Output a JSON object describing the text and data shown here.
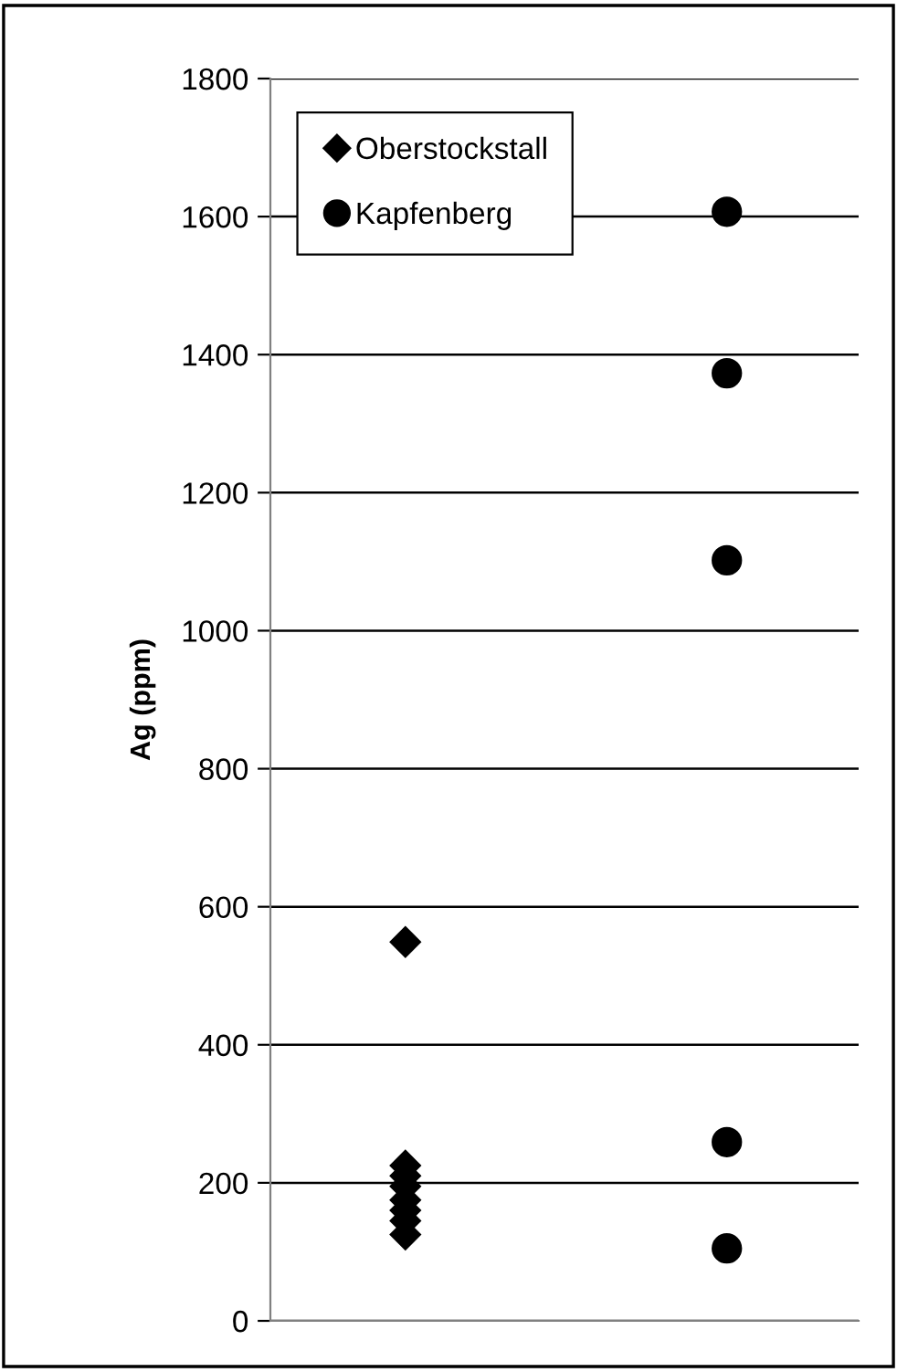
{
  "chart_data": {
    "type": "scatter",
    "ylabel": "Ag (ppm)",
    "categories": [
      null,
      null
    ],
    "series": [
      {
        "name": "Oberstockstall",
        "color": "#000000",
        "marker": "diamond",
        "values": [
          549,
          null
        ]
      },
      {
        "color": "#000000",
        "marker": "diamond",
        "values": [
          225,
          null
        ]
      },
      {
        "color": "#000000",
        "marker": "diamond",
        "values": [
          210,
          null
        ]
      },
      {
        "color": "#000000",
        "marker": "diamond",
        "values": [
          195,
          null
        ]
      },
      {
        "color": "#000000",
        "marker": "diamond",
        "values": [
          175,
          null
        ]
      },
      {
        "color": "#000000",
        "marker": "diamond",
        "values": [
          160,
          null
        ]
      },
      {
        "color": "#000000",
        "marker": "diamond",
        "values": [
          145,
          null
        ]
      },
      {
        "color": "#000000",
        "marker": "diamond",
        "values": [
          125,
          null
        ]
      },
      {
        "name": "Kapfenberg",
        "color": "#000000",
        "marker": "circle",
        "values": [
          null,
          1607
        ]
      },
      {
        "color": "#000000",
        "marker": "circle",
        "values": [
          null,
          1373
        ]
      },
      {
        "color": "#000000",
        "marker": "circle",
        "values": [
          null,
          1102
        ]
      },
      {
        "color": "#000000",
        "marker": "circle",
        "values": [
          null,
          259
        ]
      },
      {
        "color": "#000000",
        "marker": "circle",
        "values": [
          null,
          105
        ]
      }
    ],
    "ylim": [
      0,
      1800
    ],
    "yticks": [
      0,
      200,
      400,
      600,
      800,
      1000,
      1200,
      1400,
      1600,
      1800
    ],
    "grid": "y",
    "legend": "top left"
  }
}
